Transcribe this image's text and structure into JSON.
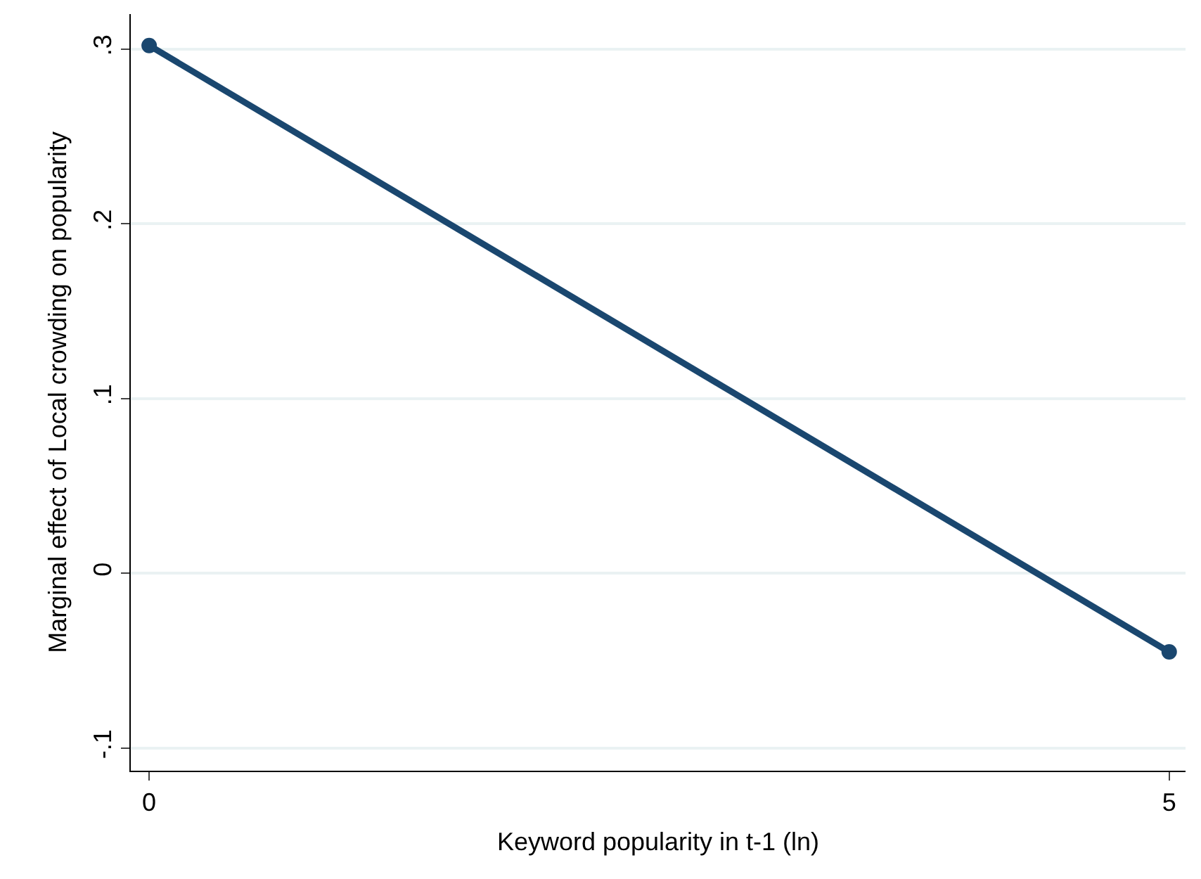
{
  "chart_data": {
    "type": "line",
    "xlabel": "Keyword popularity in t-1 (ln)",
    "ylabel": "Marginal effect of Local crowding on popularity",
    "x": [
      0,
      5
    ],
    "series": [
      {
        "color": "#1a476f",
        "values": [
          0.302,
          -0.045
        ]
      }
    ],
    "xlim": [
      -0.09,
      5.08
    ],
    "xticks": [
      0,
      5
    ],
    "ylim": [
      -0.113,
      0.32
    ],
    "yticks": [
      {
        "value": -0.1,
        "label": "-.1"
      },
      0,
      {
        "value": 0.1,
        "label": ".1"
      },
      {
        "value": 0.2,
        "label": ".2"
      },
      {
        "value": 0.3,
        "label": ".3"
      }
    ],
    "grid": "y",
    "marker": "circle",
    "line_style": "solid"
  }
}
